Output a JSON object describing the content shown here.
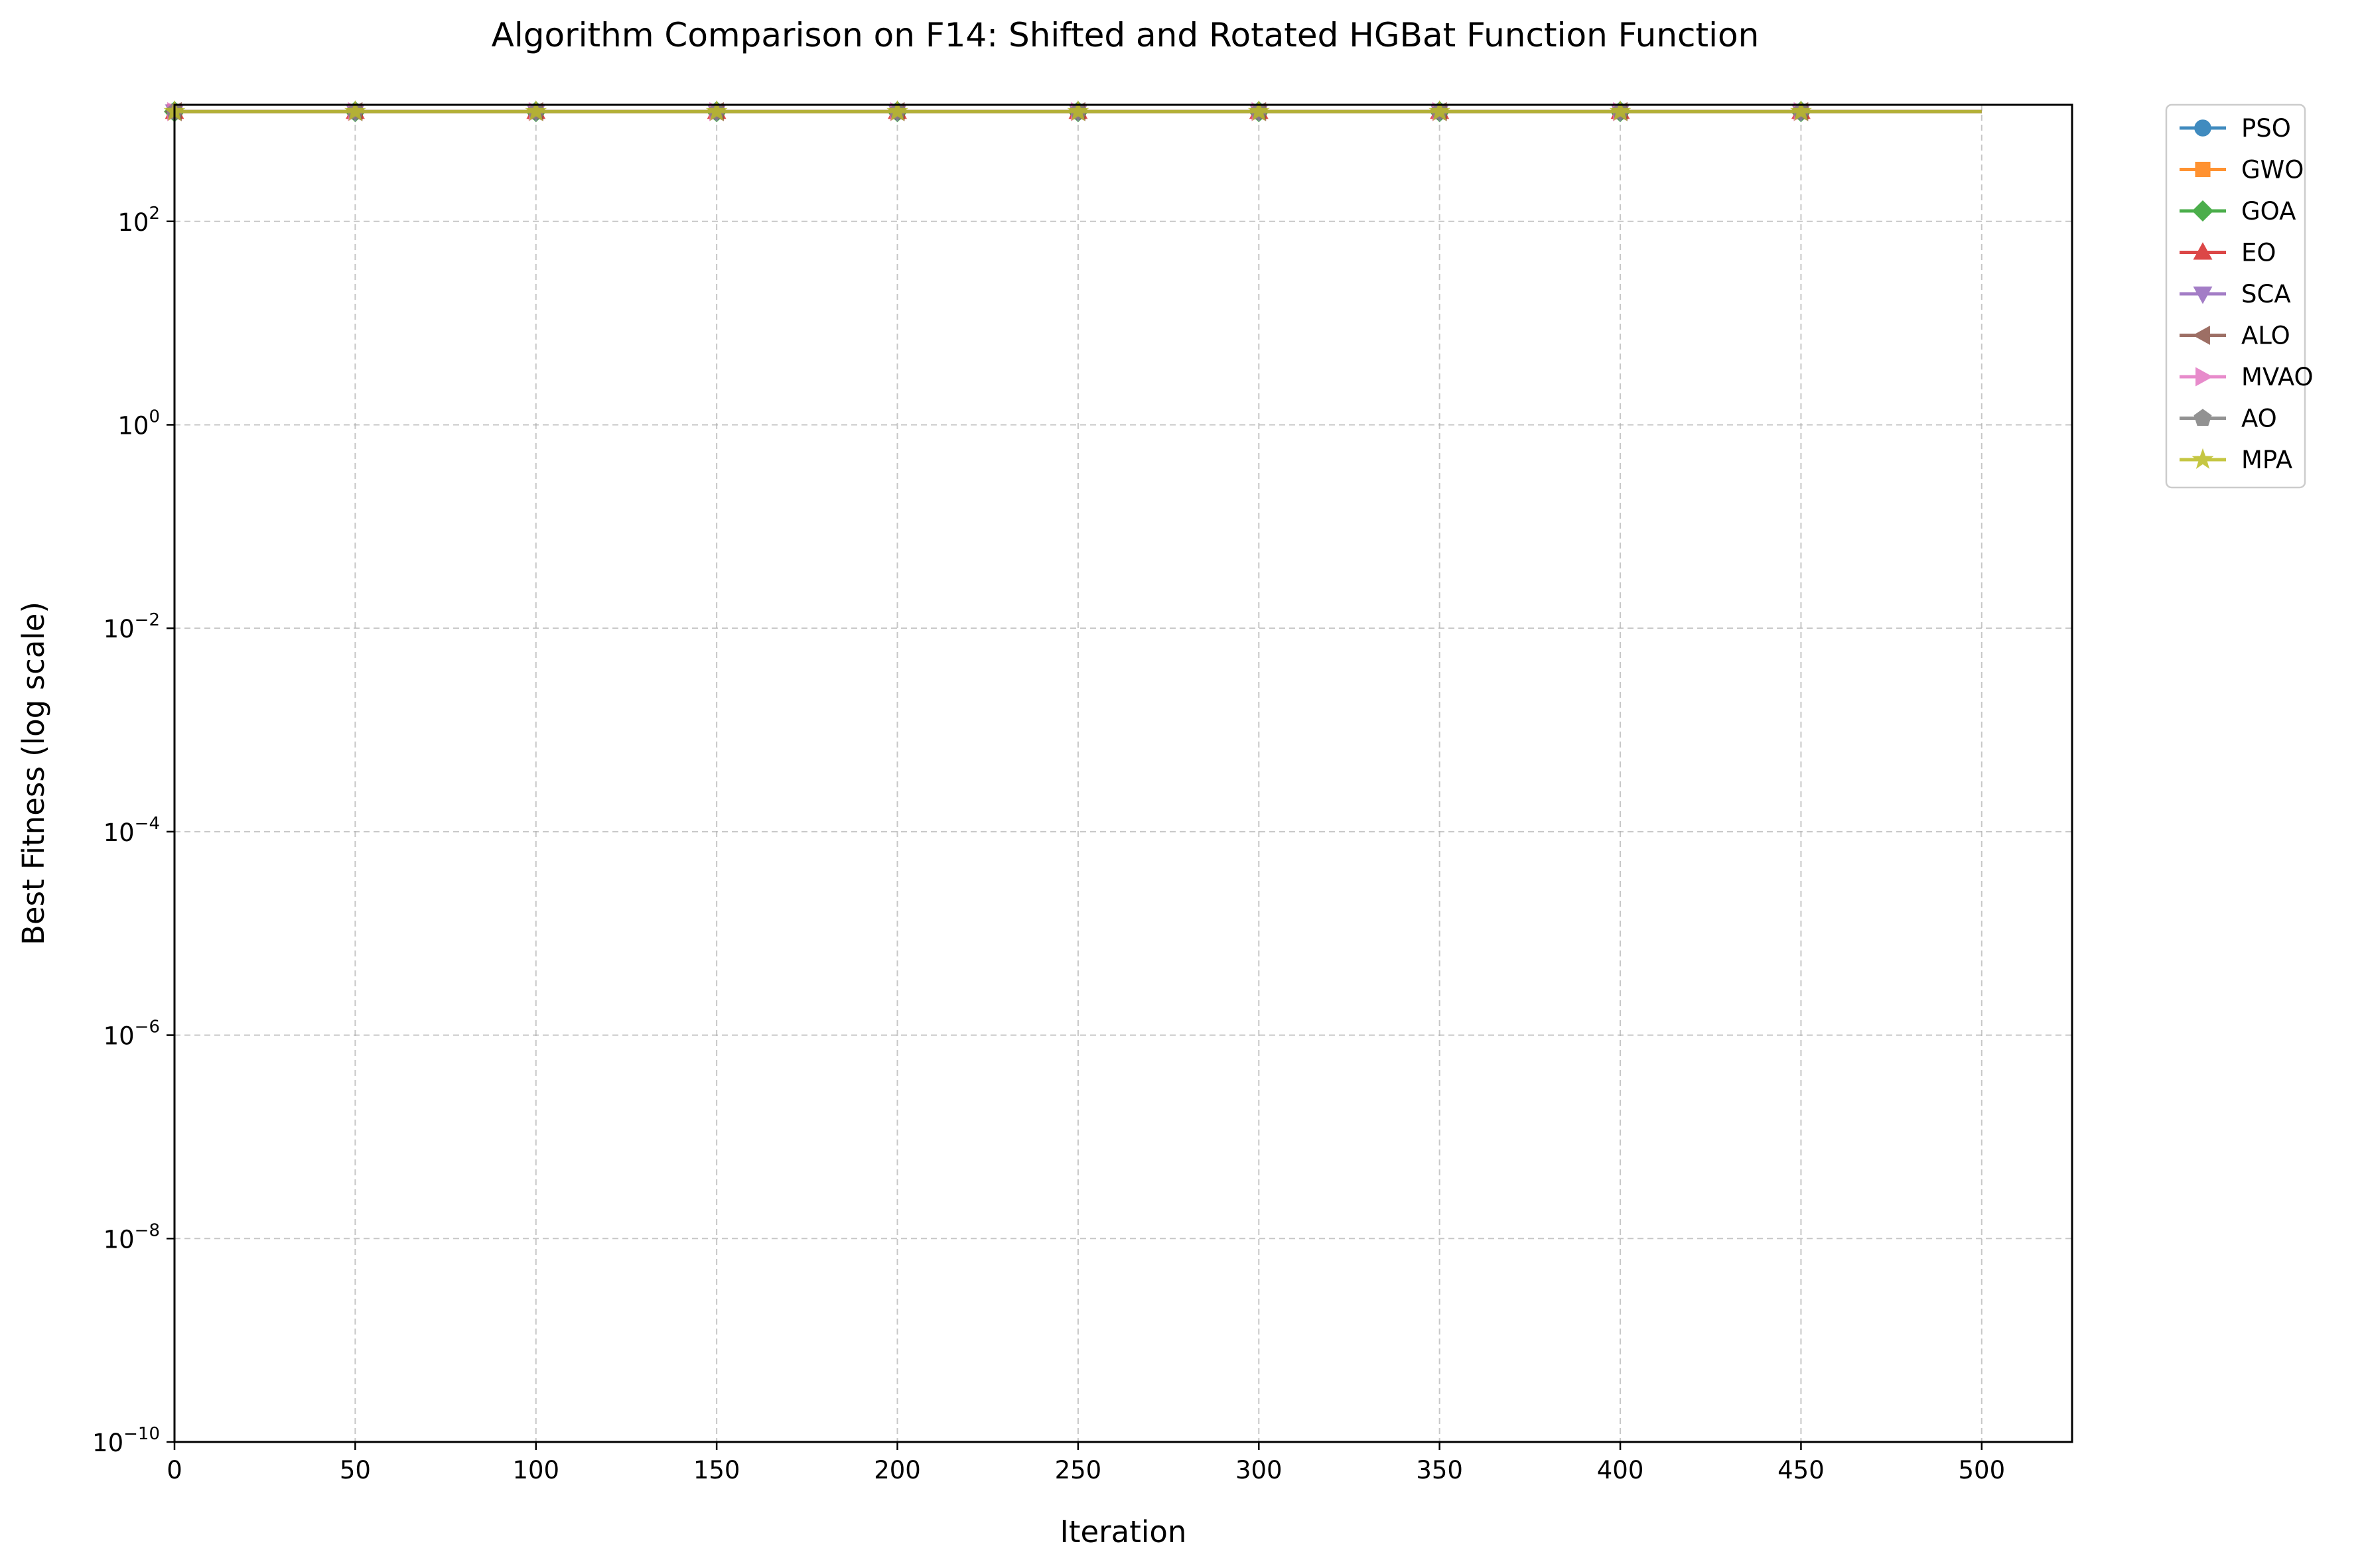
{
  "chart_data": {
    "type": "line",
    "title": "Algorithm Comparison on F14: Shifted and Rotated HGBat Function Function",
    "xlabel": "Iteration",
    "ylabel": "Best Fitness (log scale)",
    "y_scale": "log",
    "xlim": [
      0,
      525
    ],
    "ylim": [
      1e-10,
      1400
    ],
    "grid": true,
    "legend_position": "outside-top-right",
    "x_ticks": [
      "0",
      "50",
      "100",
      "150",
      "200",
      "250",
      "300",
      "350",
      "400",
      "450",
      "500"
    ],
    "y_ticks": [
      {
        "value": 1e-10,
        "base": "10",
        "exp": "−10"
      },
      {
        "value": 1e-08,
        "base": "10",
        "exp": "−8"
      },
      {
        "value": 1e-06,
        "base": "10",
        "exp": "−6"
      },
      {
        "value": 0.0001,
        "base": "10",
        "exp": "−4"
      },
      {
        "value": 0.01,
        "base": "10",
        "exp": "−2"
      },
      {
        "value": 1,
        "base": "10",
        "exp": "0"
      },
      {
        "value": 100,
        "base": "10",
        "exp": "2"
      }
    ],
    "marker_x": [
      0,
      50,
      100,
      150,
      200,
      250,
      300,
      350,
      400,
      450
    ],
    "x": [
      0,
      500
    ],
    "series": [
      {
        "name": "PSO",
        "color": "#1f77b4",
        "marker": "circle",
        "values": [
          1200,
          1200
        ]
      },
      {
        "name": "GWO",
        "color": "#ff7f0e",
        "marker": "square",
        "values": [
          1200,
          1200
        ]
      },
      {
        "name": "GOA",
        "color": "#2ca02c",
        "marker": "diamond",
        "values": [
          1200,
          1200
        ]
      },
      {
        "name": "EO",
        "color": "#d62728",
        "marker": "triangle-up",
        "values": [
          1200,
          1200
        ]
      },
      {
        "name": "SCA",
        "color": "#9467bd",
        "marker": "triangle-down",
        "values": [
          1200,
          1200
        ]
      },
      {
        "name": "ALO",
        "color": "#8c564b",
        "marker": "triangle-left",
        "values": [
          1200,
          1200
        ]
      },
      {
        "name": "MVAO",
        "color": "#e377c2",
        "marker": "triangle-right",
        "values": [
          1200,
          1200
        ]
      },
      {
        "name": "AO",
        "color": "#7f7f7f",
        "marker": "pentagon",
        "values": [
          1200,
          1200
        ]
      },
      {
        "name": "MPA",
        "color": "#bcbd22",
        "marker": "star",
        "values": [
          1200,
          1200
        ]
      }
    ]
  }
}
